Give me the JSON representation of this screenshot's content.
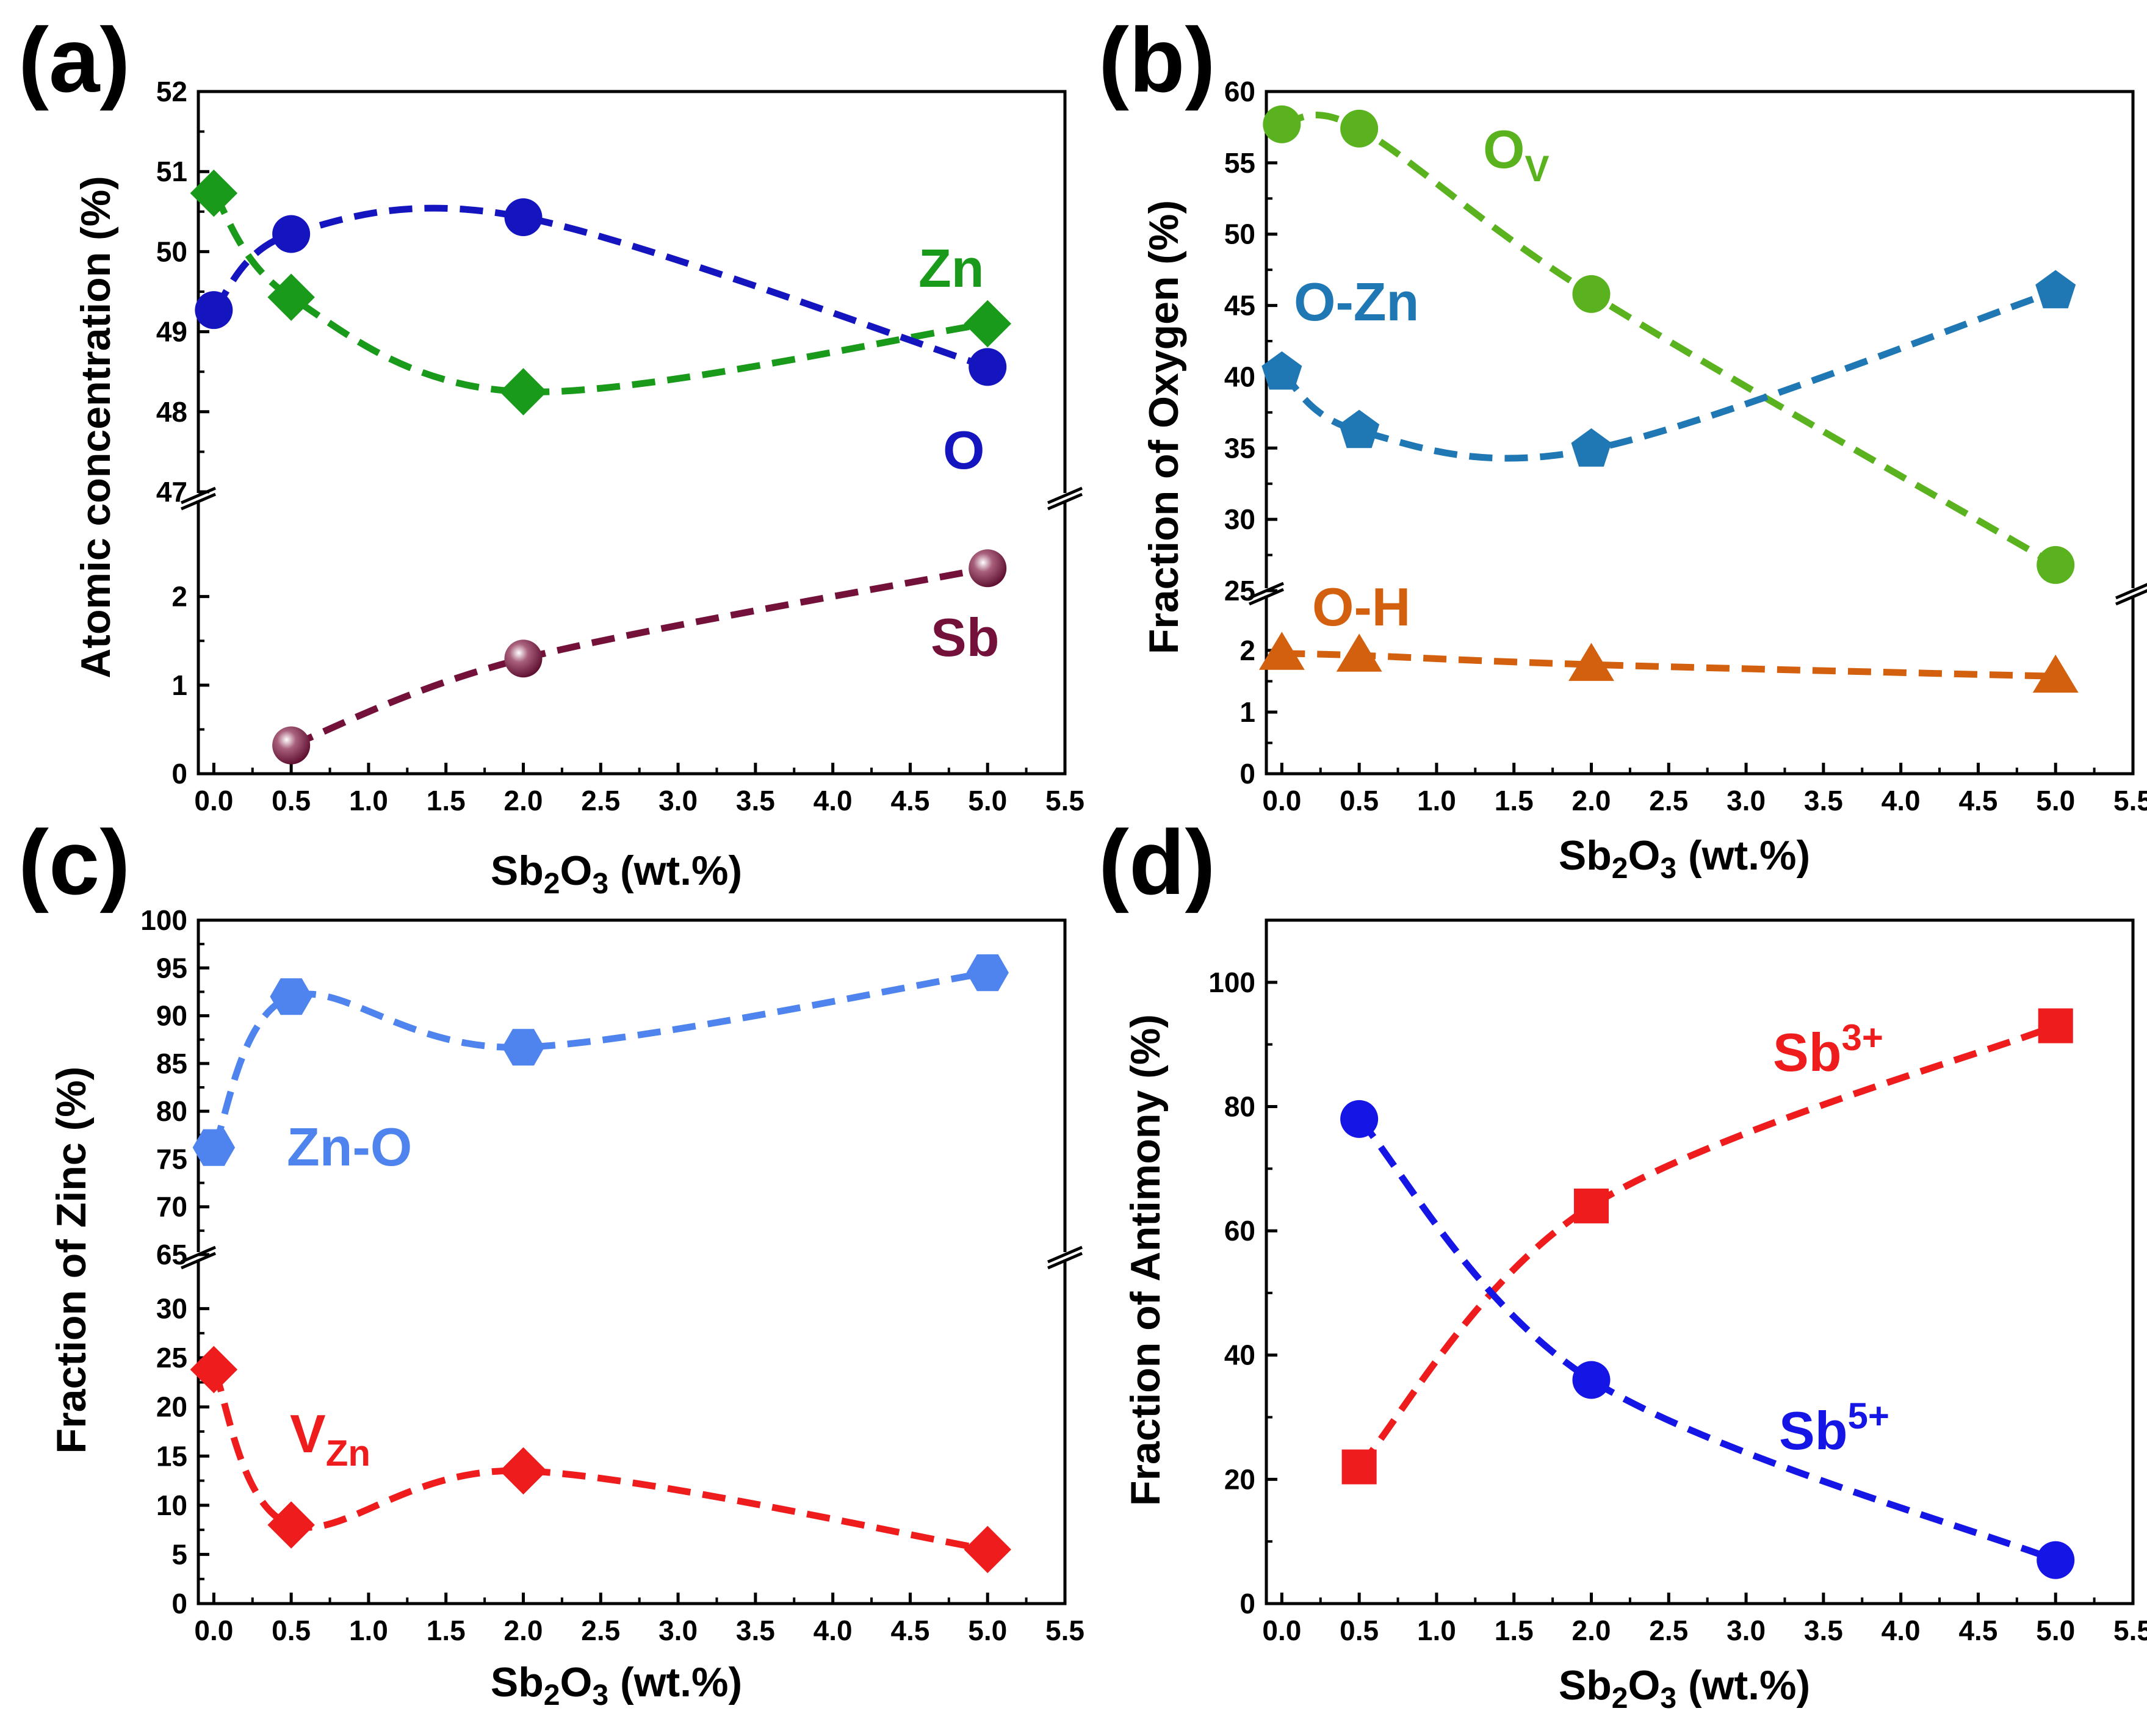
{
  "figure": {
    "x_tick_labels": [
      "0.0",
      "0.5",
      "1.0",
      "1.5",
      "2.0",
      "2.5",
      "3.0",
      "3.5",
      "4.0",
      "4.5",
      "5.0",
      "5.5"
    ],
    "xlabel": {
      "base": "Sb",
      "sub1": "2",
      "mid": "O",
      "sub2": "3",
      "tail": " (wt.%)"
    }
  },
  "chart_data": [
    {
      "panel": "(a)",
      "type": "line",
      "ylabel": "Atomic concentration (%)",
      "xlim": [
        -0.1,
        5.5
      ],
      "broken_axis": {
        "upper": {
          "ylim": [
            47,
            52
          ],
          "ticks": [
            "47",
            "48",
            "49",
            "50",
            "51",
            "52"
          ]
        },
        "lower": {
          "ylim": [
            0,
            3.1
          ],
          "ticks": [
            "0",
            "1",
            "2"
          ]
        }
      },
      "series": [
        {
          "name": "Zn",
          "label": "Zn",
          "color": "#1a9a1a",
          "marker": "diamond",
          "segment": "upper",
          "x": [
            0.0,
            0.5,
            2.0,
            5.0
          ],
          "y": [
            50.73,
            49.43,
            48.25,
            49.1
          ]
        },
        {
          "name": "O",
          "label": "O",
          "color": "#1515c0",
          "marker": "circle",
          "segment": "upper",
          "x": [
            0.0,
            0.5,
            2.0,
            5.0
          ],
          "y": [
            49.27,
            50.22,
            50.43,
            48.56
          ]
        },
        {
          "name": "Sb",
          "label": "Sb",
          "color": "#74113a",
          "marker": "sphere",
          "segment": "lower",
          "x": [
            0.5,
            2.0,
            5.0
          ],
          "y": [
            0.32,
            1.3,
            2.32
          ]
        }
      ]
    },
    {
      "panel": "(b)",
      "type": "line",
      "ylabel": "Fraction of Oxygen (%)",
      "xlim": [
        -0.1,
        5.5
      ],
      "broken_axis": {
        "upper": {
          "ylim": [
            25,
            60
          ],
          "ticks": [
            "25",
            "30",
            "35",
            "40",
            "45",
            "50",
            "55",
            "60"
          ]
        },
        "lower": {
          "ylim": [
            0,
            2.9
          ],
          "ticks": [
            "0",
            "1",
            "2"
          ]
        }
      },
      "series": [
        {
          "name": "Ov",
          "label": "O",
          "label_sub": "V",
          "color": "#5ab31e",
          "marker": "circle",
          "segment": "upper",
          "x": [
            0.0,
            0.5,
            2.0,
            5.0
          ],
          "y": [
            57.7,
            57.4,
            45.8,
            26.8
          ]
        },
        {
          "name": "O-Zn",
          "label": "O-Zn",
          "color": "#1f77b4",
          "marker": "pentagon",
          "segment": "upper",
          "x": [
            0.0,
            0.5,
            2.0,
            5.0
          ],
          "y": [
            40.3,
            36.2,
            34.9,
            46.0
          ]
        },
        {
          "name": "O-H",
          "label": "O-H",
          "color": "#d2600f",
          "marker": "triangle",
          "segment": "lower",
          "x": [
            0.0,
            0.5,
            2.0,
            5.0
          ],
          "y": [
            1.95,
            1.92,
            1.77,
            1.58
          ]
        }
      ]
    },
    {
      "panel": "(c)",
      "type": "line",
      "ylabel": "Fraction of Zinc (%)",
      "xlim": [
        -0.1,
        5.5
      ],
      "broken_axis": {
        "upper": {
          "ylim": [
            65,
            100
          ],
          "ticks": [
            "65",
            "70",
            "75",
            "80",
            "85",
            "90",
            "95",
            "100"
          ]
        },
        "lower": {
          "ylim": [
            0,
            35
          ],
          "ticks": [
            "0",
            "5",
            "10",
            "15",
            "20",
            "25",
            "30"
          ]
        }
      },
      "series": [
        {
          "name": "Zn-O",
          "label": "Zn-O",
          "color": "#4f84ee",
          "marker": "hexagon",
          "segment": "upper",
          "x": [
            0.0,
            0.5,
            2.0,
            5.0
          ],
          "y": [
            76.2,
            92.0,
            86.7,
            94.5
          ]
        },
        {
          "name": "VZn",
          "label": "V",
          "label_sub": "Zn",
          "color": "#ee1c1c",
          "marker": "diamond",
          "segment": "lower",
          "x": [
            0.0,
            0.5,
            2.0,
            5.0
          ],
          "y": [
            23.8,
            8.0,
            13.5,
            5.5
          ]
        }
      ]
    },
    {
      "panel": "(d)",
      "type": "line",
      "ylabel": "Fraction of Antimony (%)",
      "xlim": [
        -0.1,
        5.5
      ],
      "ylim": [
        0,
        110
      ],
      "y_ticks": [
        "0",
        "20",
        "40",
        "60",
        "80",
        "100"
      ],
      "series": [
        {
          "name": "Sb3+",
          "label": "Sb",
          "label_sup": "3+",
          "color": "#ee1c1c",
          "marker": "square",
          "x": [
            0.5,
            2.0,
            5.0
          ],
          "y": [
            22.0,
            64.0,
            93.0
          ]
        },
        {
          "name": "Sb5+",
          "label": "Sb",
          "label_sup": "5+",
          "color": "#1515e6",
          "marker": "circle",
          "x": [
            0.5,
            2.0,
            5.0
          ],
          "y": [
            78.0,
            36.0,
            7.0
          ]
        }
      ]
    }
  ]
}
